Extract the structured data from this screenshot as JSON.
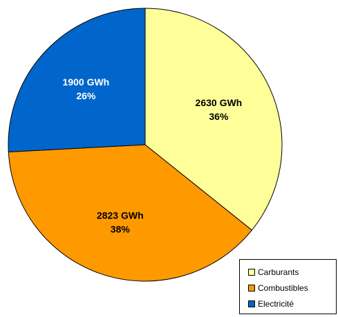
{
  "chart_data": {
    "type": "pie",
    "title": "",
    "legend_position": "bottom-right",
    "slices": [
      {
        "name": "Carburants",
        "value": 2630,
        "value_label": "2630 GWh",
        "percent_label": "36%",
        "color": "#FFFF99"
      },
      {
        "name": "Combustibles",
        "value": 2823,
        "value_label": "2823 GWh",
        "percent_label": "38%",
        "color": "#FF9900"
      },
      {
        "name": "Electricité",
        "value": 1900,
        "value_label": "1900 GWh",
        "percent_label": "26%",
        "color": "#0066CC"
      }
    ]
  }
}
